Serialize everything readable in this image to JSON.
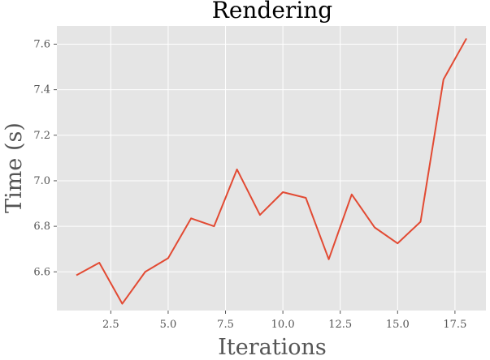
{
  "chart_data": {
    "type": "line",
    "title": "Rendering",
    "xlabel": "Iterations",
    "ylabel": "Time (s)",
    "x": [
      1,
      2,
      3,
      4,
      5,
      6,
      7,
      8,
      9,
      10,
      11,
      12,
      13,
      14,
      15,
      16,
      17,
      18
    ],
    "series": [
      {
        "values": [
          6.585,
          6.64,
          6.46,
          6.6,
          6.66,
          6.835,
          6.8,
          7.05,
          6.85,
          6.95,
          6.925,
          6.655,
          6.94,
          6.795,
          6.725,
          6.82,
          7.445,
          7.625
        ],
        "color": "#E24A33"
      }
    ],
    "xlim": [
      0.15,
      18.85
    ],
    "ylim": [
      6.43,
      7.68
    ],
    "xticks": [
      "2.5",
      "5.0",
      "7.5",
      "10.0",
      "12.5",
      "15.0",
      "17.5"
    ],
    "yticks": [
      "6.6",
      "6.8",
      "7.0",
      "7.2",
      "7.4",
      "7.6"
    ],
    "grid": true,
    "background": "#E5E5E5",
    "grid_color": "#FFFFFF"
  }
}
